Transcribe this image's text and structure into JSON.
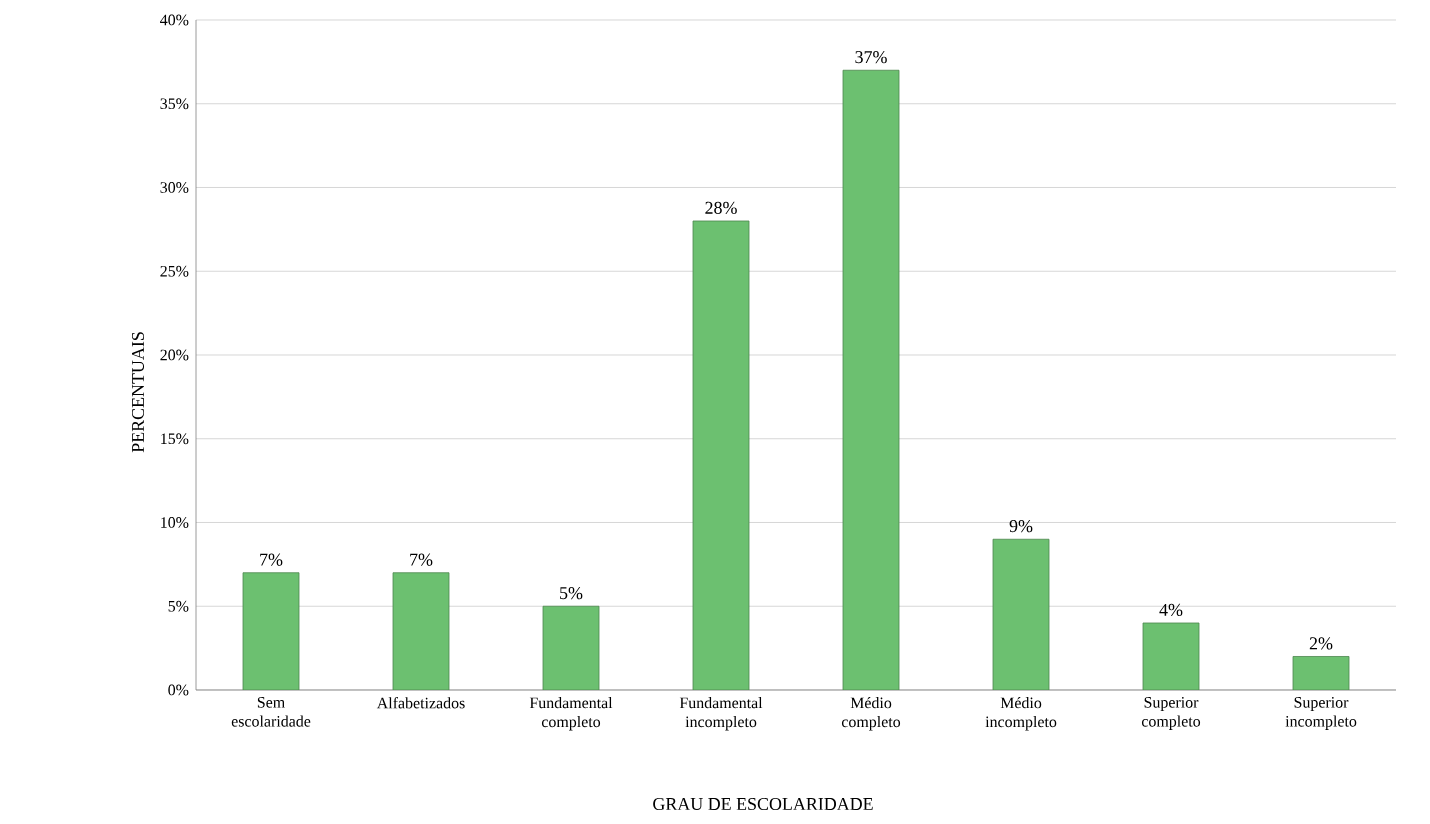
{
  "chart_data": {
    "type": "bar",
    "xlabel": "GRAU DE ESCOLARIDADE",
    "ylabel": "PERCENTUAIS",
    "categories": [
      "Sem escolaridade",
      "Alfabetizados",
      "Fundamental completo",
      "Fundamental incompleto",
      "Médio completo",
      "Médio incompleto",
      "Superior completo",
      "Superior incompleto"
    ],
    "values": [
      7,
      7,
      5,
      28,
      37,
      9,
      4,
      2
    ],
    "value_labels": [
      "7%",
      "7%",
      "5%",
      "28%",
      "37%",
      "9%",
      "4%",
      "2%"
    ],
    "color": "#6cc070",
    "ylim": [
      0,
      40
    ],
    "yticks": [
      {
        "value": 0,
        "label": "0%"
      },
      {
        "value": 5,
        "label": "5%"
      },
      {
        "value": 10,
        "label": "10%"
      },
      {
        "value": 15,
        "label": "15%"
      },
      {
        "value": 20,
        "label": "20%"
      },
      {
        "value": 25,
        "label": "25%"
      },
      {
        "value": 30,
        "label": "30%"
      },
      {
        "value": 35,
        "label": "35%"
      },
      {
        "value": 40,
        "label": "40%"
      }
    ],
    "grid": "y"
  }
}
